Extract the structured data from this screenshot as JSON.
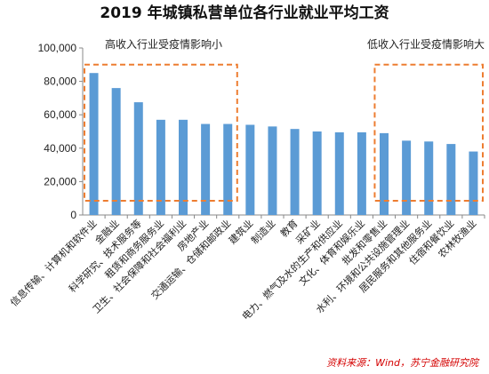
{
  "chart_data": {
    "type": "bar",
    "title": "2019 年城镇私营单位各行业就业平均工资",
    "categories": [
      "信息传输、计算机和软件业",
      "金融业",
      "科学研究、技术服务等",
      "租赁和商务服务业",
      "卫生、社会保障和社会福利业",
      "房地产业",
      "交通运输、仓储和邮政业",
      "建筑业",
      "制造业",
      "教育",
      "采矿业",
      "电力、燃气及水的生产和供应业",
      "文化、体育和娱乐业",
      "批发和零售业",
      "水利、环境和公共设施管理业",
      "居民服务和其他服务业",
      "住宿和餐饮业",
      "农林牧渔业"
    ],
    "values": [
      85000,
      76000,
      67500,
      57000,
      57000,
      54500,
      54500,
      54000,
      53000,
      51500,
      50000,
      49500,
      49500,
      49000,
      44500,
      44000,
      42500,
      38000
    ],
    "ylim": [
      0,
      100000
    ],
    "yticks": [
      "0",
      "20,000",
      "40,000",
      "60,000",
      "80,000",
      "100,000"
    ],
    "ytick_values": [
      0,
      20000,
      40000,
      60000,
      80000,
      100000
    ],
    "bar_color": "#5b9bd5",
    "grid": false,
    "annotations": [
      {
        "text": "高收入行业受疫情影响小",
        "color": "#ed7d31"
      },
      {
        "text": "低收入行业受疫情影响大",
        "color": "#ed7d31"
      }
    ],
    "source": "资料来源：Wind，苏宁金融研究院"
  }
}
